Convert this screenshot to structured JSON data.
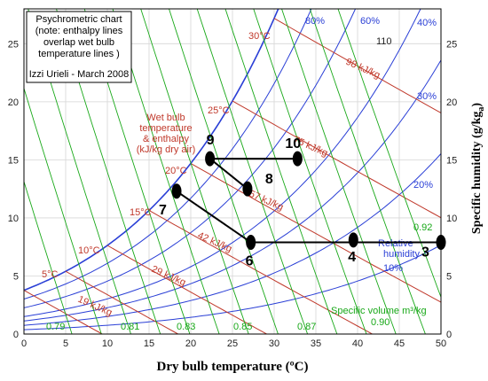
{
  "chart_data": {
    "type": "line",
    "title_lines": [
      "Psychrometric chart",
      "(note: enthalpy lines",
      "overlap wet bulb",
      "temperature lines )"
    ],
    "author": "Izzi Urieli - March 2008",
    "xlabel": "Dry bulb temperature (ºC)",
    "ylabel_main": "Specific humidity (g/kg",
    "ylabel_sub": "a",
    "ylabel_end": ")",
    "xlim": [
      0,
      50
    ],
    "ylim": [
      0,
      28
    ],
    "x_ticks": [
      0,
      5,
      10,
      15,
      20,
      25,
      30,
      35,
      40,
      45,
      50
    ],
    "y_ticks": [
      0,
      5,
      10,
      15,
      20,
      25
    ],
    "grid": true,
    "wetbulb_label": [
      "Wet bulb",
      "temperature",
      "& enthalpy",
      "(kJ/kg dry air)"
    ],
    "wetbulb_temps": [
      "5°C",
      "10°C",
      "15°C",
      "20°C",
      "25°C",
      "30°C"
    ],
    "enthalpy_labels": [
      "19 kJ/kg",
      "29 kJ/kg",
      "42 kJ/kg",
      "57 kJ/kg",
      "75 kJ/kg",
      "98 kJ/kg"
    ],
    "rh_labels": [
      "80%",
      "60%",
      "40%",
      "30%",
      "20%",
      "10%"
    ],
    "rh_title": [
      "Relative",
      "humidity"
    ],
    "volume_labels": [
      "0.79",
      "0.81",
      "0.83",
      "0.85",
      "0.87",
      "0.90",
      "0.92"
    ],
    "volume_title": "Specific volume m³/kg",
    "corner_label": "110",
    "points": [
      {
        "label": "3",
        "x": 50.0,
        "y": 7.9
      },
      {
        "label": "4",
        "x": 39.5,
        "y": 8.1
      },
      {
        "label": "6",
        "x": 27.2,
        "y": 7.9
      },
      {
        "label": "7",
        "x": 18.3,
        "y": 12.3
      },
      {
        "label": "8",
        "x": 26.8,
        "y": 12.5
      },
      {
        "label": "9",
        "x": 22.3,
        "y": 15.1
      },
      {
        "label": "10",
        "x": 32.8,
        "y": 15.1
      }
    ],
    "process_lines": [
      [
        "9",
        "10"
      ],
      [
        "9",
        "8"
      ],
      [
        "7",
        "6"
      ],
      [
        "6",
        "3"
      ]
    ]
  },
  "colors": {
    "rh": "#2a3fd6",
    "wetbulb": "#c0392b",
    "volume": "#18a818",
    "process": "#000000"
  }
}
